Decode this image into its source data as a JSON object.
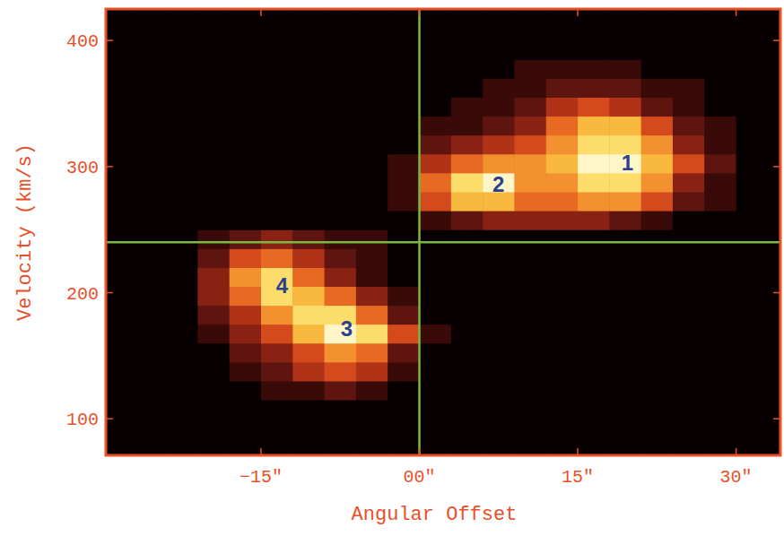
{
  "chart_data": {
    "type": "heatmap",
    "x_label": "Angular Offset",
    "y_label": "Velocity (km/s)",
    "xlim": [
      -29.7,
      34.2
    ],
    "ylim": [
      71,
      425
    ],
    "xticks": [
      {
        "value": -15,
        "label": "−15\""
      },
      {
        "value": 0,
        "label": "00\""
      },
      {
        "value": 15,
        "label": "15\""
      },
      {
        "value": 30,
        "label": "30\""
      }
    ],
    "yticks": [
      100,
      200,
      300,
      400
    ],
    "zlim": [
      0,
      10
    ],
    "cells": {
      "x0": -30,
      "dx": 3,
      "y0": 70,
      "dy": 15,
      "values": [
        [
          0,
          0,
          0,
          0,
          0,
          0,
          0,
          0,
          0,
          0,
          0,
          0,
          0,
          0,
          0,
          0,
          0,
          0,
          0,
          0,
          0,
          0
        ],
        [
          0,
          0,
          0,
          0,
          0,
          0,
          0,
          0,
          0,
          0,
          0,
          0,
          0,
          0,
          0,
          0,
          0,
          0,
          0,
          0,
          0,
          0
        ],
        [
          0,
          0,
          0,
          0,
          0,
          0,
          0,
          0,
          0,
          0,
          0,
          0,
          0,
          0,
          0,
          0,
          0,
          0,
          0,
          0,
          0,
          0
        ],
        [
          0,
          0,
          0,
          0,
          0,
          1,
          1,
          2,
          1,
          0,
          0,
          0,
          0,
          0,
          0,
          0,
          0,
          0,
          0,
          0,
          0,
          0
        ],
        [
          0,
          0,
          0,
          0,
          1,
          2,
          4,
          5,
          4,
          1,
          0,
          0,
          0,
          0,
          0,
          0,
          0,
          0,
          0,
          0,
          0,
          0
        ],
        [
          0,
          0,
          0,
          0,
          2,
          3,
          5,
          7,
          6,
          2,
          0,
          0,
          0,
          0,
          0,
          0,
          0,
          0,
          0,
          0,
          0,
          0
        ],
        [
          0,
          0,
          0,
          1,
          3,
          5,
          8,
          10,
          9,
          5,
          1,
          0,
          0,
          0,
          0,
          0,
          0,
          0,
          0,
          0,
          0,
          0
        ],
        [
          0,
          0,
          0,
          2,
          4,
          7,
          9,
          9,
          6,
          2,
          0,
          0,
          0,
          0,
          0,
          0,
          0,
          0,
          0,
          0,
          0,
          0
        ],
        [
          0,
          0,
          0,
          3,
          6,
          9,
          8,
          6,
          3,
          1,
          0,
          0,
          0,
          0,
          0,
          0,
          0,
          0,
          0,
          0,
          0,
          0
        ],
        [
          0,
          0,
          0,
          3,
          7,
          9,
          6,
          3,
          1,
          0,
          0,
          0,
          0,
          0,
          0,
          0,
          0,
          0,
          0,
          0,
          0,
          0
        ],
        [
          0,
          0,
          0,
          2,
          5,
          6,
          4,
          2,
          1,
          0,
          0,
          0,
          0,
          0,
          0,
          0,
          0,
          0,
          0,
          0,
          0,
          0
        ],
        [
          0,
          0,
          0,
          1,
          2,
          3,
          2,
          1,
          1,
          0,
          0,
          0,
          0,
          0,
          0,
          0,
          0,
          0,
          0,
          0,
          0,
          0
        ],
        [
          0,
          0,
          0,
          0,
          0,
          0,
          0,
          0,
          0,
          0,
          1,
          2,
          3,
          3,
          3,
          3,
          2,
          1,
          0,
          0,
          0,
          0
        ],
        [
          0,
          0,
          0,
          0,
          0,
          0,
          0,
          0,
          0,
          1,
          5,
          8,
          8,
          6,
          6,
          7,
          7,
          5,
          2,
          1,
          0,
          0
        ],
        [
          0,
          0,
          0,
          0,
          0,
          0,
          0,
          0,
          0,
          1,
          6,
          9,
          10,
          7,
          7,
          9,
          9,
          7,
          3,
          1,
          0,
          0
        ],
        [
          0,
          0,
          0,
          0,
          0,
          0,
          0,
          0,
          0,
          1,
          4,
          6,
          7,
          7,
          8,
          10,
          10,
          8,
          5,
          2,
          0,
          0
        ],
        [
          0,
          0,
          0,
          0,
          0,
          0,
          0,
          0,
          0,
          0,
          2,
          3,
          4,
          5,
          7,
          9,
          9,
          7,
          3,
          1,
          0,
          0
        ],
        [
          0,
          0,
          0,
          0,
          0,
          0,
          0,
          0,
          0,
          0,
          1,
          1,
          2,
          3,
          6,
          8,
          8,
          5,
          2,
          1,
          0,
          0
        ],
        [
          0,
          0,
          0,
          0,
          0,
          0,
          0,
          0,
          0,
          0,
          0,
          1,
          1,
          2,
          4,
          5,
          4,
          2,
          1,
          0,
          0,
          0
        ],
        [
          0,
          0,
          0,
          0,
          0,
          0,
          0,
          0,
          0,
          0,
          0,
          0,
          1,
          1,
          2,
          2,
          2,
          1,
          1,
          0,
          0,
          0
        ],
        [
          0,
          0,
          0,
          0,
          0,
          0,
          0,
          0,
          0,
          0,
          0,
          0,
          0,
          1,
          1,
          1,
          1,
          0,
          0,
          0,
          0,
          0
        ],
        [
          0,
          0,
          0,
          0,
          0,
          0,
          0,
          0,
          0,
          0,
          0,
          0,
          0,
          0,
          0,
          0,
          0,
          0,
          0,
          0,
          0,
          0
        ],
        [
          0,
          0,
          0,
          0,
          0,
          0,
          0,
          0,
          0,
          0,
          0,
          0,
          0,
          0,
          0,
          0,
          0,
          0,
          0,
          0,
          0,
          0
        ],
        [
          0,
          0,
          0,
          0,
          0,
          0,
          0,
          0,
          0,
          0,
          0,
          0,
          0,
          0,
          0,
          0,
          0,
          0,
          0,
          0,
          0,
          0
        ]
      ]
    },
    "reference_lines": {
      "x": 0,
      "y": 240
    },
    "annotations": [
      {
        "text": "1",
        "x": 19.7,
        "y": 303
      },
      {
        "text": "2",
        "x": 7.5,
        "y": 286
      },
      {
        "text": "3",
        "x": -6.9,
        "y": 171
      },
      {
        "text": "4",
        "x": -13,
        "y": 205
      }
    ]
  }
}
